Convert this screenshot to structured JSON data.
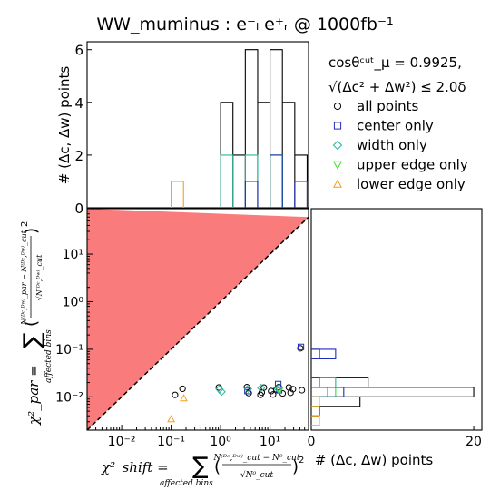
{
  "title": "WW_muminus : e⁻ₗ e⁺ᵣ @ 1000fb⁻¹",
  "colors": {
    "all": "#000000",
    "center": "#1f2db8",
    "width": "#2bb39a",
    "upper": "#33e026",
    "lower": "#f0a021",
    "excluded": "#fa7b7b"
  },
  "icons": {
    "all": "circle-marker",
    "center": "square-marker",
    "width": "diamond-marker",
    "upper": "down-triangle-marker",
    "lower": "up-triangle-marker"
  },
  "legend": {
    "cut_line1": "cosθᶜᵘᵗ_μ = 0.9925,",
    "cut_line2": "√(Δc² + Δw²) ≤ 2.0δ",
    "items": [
      "all points",
      "center only",
      "width only",
      "upper edge only",
      "lower edge only"
    ]
  },
  "labels": {
    "top_ylabel": "# (Δc, Δw) points",
    "right_xlabel": "# (Δc, Δw) points",
    "xlabel_lhs": "χ²_shift =",
    "xlabel_sum": "∑",
    "xlabel_sub": "affected bins",
    "xlabel_frac_num": "N⁽ᴰᶜ,ᴰʷ⁾_cut − N⁰_cut",
    "xlabel_frac_den": "√N⁰_cut",
    "ylabel_lhs": "χ²_par =",
    "ylabel_sum": "∑",
    "ylabel_sub": "affected bins",
    "ylabel_frac_num": "N⁽ᴰᶜ,ᴰʷ⁾_par − N⁽ᴰᶜ,ᴰʷ⁾_cut",
    "ylabel_frac_den": "√N⁽ᴰᶜ,ᴰʷ⁾_cut"
  },
  "chart_data": [
    {
      "type": "scatter",
      "panel": "main",
      "xscale": "log",
      "yscale": "log",
      "xlim": [
        0.002,
        60
      ],
      "ylim": [
        0.002,
        90
      ],
      "x_ticks": [
        {
          "value": 0.01,
          "label": "10⁻²"
        },
        {
          "value": 0.1,
          "label": "10⁻¹"
        },
        {
          "value": 1,
          "label": "10⁰"
        },
        {
          "value": 10,
          "label": "10¹"
        }
      ],
      "y_ticks": [
        {
          "value": 0.01,
          "label": "10⁻²"
        },
        {
          "value": 0.1,
          "label": "10⁻¹"
        },
        {
          "value": 1,
          "label": "10⁰"
        },
        {
          "value": 10,
          "label": "10¹"
        }
      ],
      "diagonal": "y = x (dashed), region y > x shaded",
      "series": [
        {
          "name": "all points",
          "marker": "circle",
          "x": [
            0.12,
            0.17,
            0.92,
            3.4,
            3.7,
            6.4,
            6.8,
            7.5,
            10.5,
            11.5,
            13.5,
            15,
            18,
            24,
            26,
            29,
            41,
            44
          ],
          "y": [
            0.011,
            0.0148,
            0.0158,
            0.016,
            0.012,
            0.011,
            0.0123,
            0.0157,
            0.0132,
            0.0112,
            0.0143,
            0.016,
            0.0118,
            0.0158,
            0.0122,
            0.0145,
            0.105,
            0.0138
          ]
        },
        {
          "name": "center only",
          "marker": "square",
          "x": [
            3.5,
            14.6,
            15.2,
            42
          ],
          "y": [
            0.0133,
            0.0185,
            0.0138,
            0.112
          ]
        },
        {
          "name": "width only",
          "marker": "diamond",
          "x": [
            0.95,
            1.05,
            3.6,
            6.6,
            14.4
          ],
          "y": [
            0.0145,
            0.0128,
            0.0148,
            0.0154,
            0.0149
          ]
        },
        {
          "name": "upper edge only",
          "marker": "down-triangle",
          "x": [
            15.5
          ],
          "y": [
            0.0137
          ]
        },
        {
          "name": "lower edge only",
          "marker": "up-triangle",
          "x": [
            0.1,
            0.18
          ],
          "y": [
            0.0034,
            0.0093
          ]
        }
      ]
    },
    {
      "type": "histogram",
      "panel": "top",
      "ylabel": "# (Δc, Δw) points",
      "ylim": [
        0,
        6.3
      ],
      "y_ticks": [
        0,
        2,
        4,
        6
      ],
      "log_bin_edges": [
        -1,
        -0.75,
        -0.5,
        -0.25,
        0,
        0.25,
        0.5,
        0.75,
        1,
        1.25,
        1.5,
        1.75
      ],
      "series": [
        {
          "name": "all points",
          "counts": [
            0,
            0,
            0,
            0,
            4,
            2,
            6,
            4,
            6,
            4,
            2
          ]
        },
        {
          "name": "center only",
          "counts": [
            0,
            0,
            0,
            0,
            0,
            0,
            1,
            0,
            2,
            0,
            1
          ]
        },
        {
          "name": "width only",
          "counts": [
            0,
            0,
            0,
            0,
            2,
            0,
            2,
            0,
            2,
            0,
            0
          ]
        },
        {
          "name": "upper edge only",
          "counts": [
            0,
            0,
            0,
            0,
            0,
            0,
            0,
            0,
            2,
            0,
            0
          ]
        },
        {
          "name": "lower edge only",
          "counts": [
            1,
            0,
            0,
            0,
            0,
            0,
            0,
            0,
            0,
            0,
            0
          ]
        }
      ]
    },
    {
      "type": "histogram",
      "panel": "right",
      "orientation": "horizontal",
      "xlabel": "# (Δc, Δw) points",
      "xlim": [
        0,
        21
      ],
      "x_ticks": [
        0,
        20
      ],
      "log_bin_edges": [
        -2.6,
        -2.4,
        -2.2,
        -2.0,
        -1.8,
        -1.6,
        -1.4,
        -1.2,
        -1.0
      ],
      "series": [
        {
          "name": "all points",
          "counts": [
            0,
            1,
            6,
            20,
            7,
            0,
            0,
            1
          ]
        },
        {
          "name": "center only",
          "counts": [
            0,
            0,
            0,
            4,
            1,
            0,
            0,
            3
          ]
        },
        {
          "name": "width only",
          "counts": [
            0,
            0,
            0,
            2,
            3,
            0,
            0,
            0
          ]
        },
        {
          "name": "upper edge only",
          "counts": [
            0,
            0,
            1,
            3,
            0,
            0,
            0,
            0
          ]
        },
        {
          "name": "lower edge only",
          "counts": [
            1,
            0,
            1,
            0,
            0,
            0,
            0,
            0
          ]
        }
      ]
    }
  ]
}
